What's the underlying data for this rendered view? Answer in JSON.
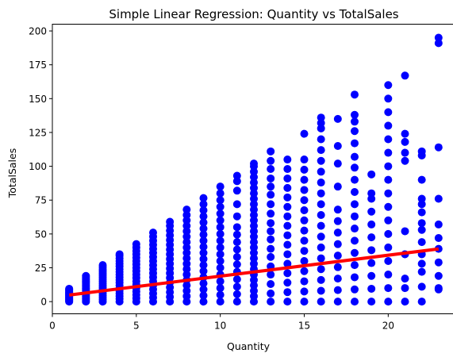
{
  "chart_data": {
    "type": "scatter",
    "title": "Simple Linear Regression: Quantity vs TotalSales",
    "xlabel": "Quantity",
    "ylabel": "TotalSales",
    "xlim": [
      0,
      24
    ],
    "ylim": [
      -9,
      205
    ],
    "grid": false,
    "x_ticks": [
      0,
      5,
      10,
      15,
      20
    ],
    "y_ticks": [
      0,
      25,
      50,
      75,
      100,
      125,
      150,
      175,
      200
    ],
    "colors": {
      "points": "#0000ff",
      "regression": "#ff0000"
    },
    "point_groups": [
      {
        "x": 1,
        "values": [
          0,
          0.5,
          1,
          1.5,
          2,
          2.5,
          3,
          3.5,
          4,
          4.5,
          5,
          5.5,
          6,
          6.5,
          7,
          7.5,
          8,
          8.5,
          9,
          9.5
        ]
      },
      {
        "x": 2,
        "values": [
          0,
          1,
          2,
          3,
          4,
          5,
          6,
          7,
          8,
          9,
          10,
          11,
          12,
          13,
          14,
          15,
          16,
          17,
          18,
          19
        ]
      },
      {
        "x": 3,
        "values": [
          0,
          1.5,
          3,
          4.5,
          6,
          7.5,
          9,
          10.5,
          12,
          13.5,
          15,
          16.5,
          18,
          19.5,
          21,
          22.5,
          24,
          25.5,
          27
        ]
      },
      {
        "x": 4,
        "values": [
          0,
          2,
          4,
          6,
          8,
          10,
          12,
          14,
          16,
          18,
          20,
          22,
          24,
          26,
          28,
          30,
          32,
          34,
          35
        ]
      },
      {
        "x": 5,
        "values": [
          0,
          2.5,
          5,
          7.5,
          10,
          12.5,
          15,
          17.5,
          20,
          22.5,
          25,
          27.5,
          30,
          32.5,
          35,
          37.5,
          40,
          42.5
        ]
      },
      {
        "x": 6,
        "values": [
          0,
          3,
          6,
          9,
          12,
          15,
          18,
          21,
          24,
          27,
          30,
          33,
          36,
          39,
          42,
          45,
          48,
          51
        ]
      },
      {
        "x": 7,
        "values": [
          0,
          3.5,
          7,
          10.5,
          14,
          17.5,
          21,
          24.5,
          28,
          31.5,
          35,
          38.5,
          42,
          45.5,
          49,
          52.5,
          56,
          59
        ]
      },
      {
        "x": 8,
        "values": [
          0,
          4,
          8,
          12,
          16,
          20,
          24,
          28,
          32,
          36,
          40,
          44,
          48,
          52,
          56,
          60,
          64,
          68
        ]
      },
      {
        "x": 9,
        "values": [
          0,
          4.5,
          9,
          13.5,
          18,
          22.5,
          27,
          31.5,
          36,
          40.5,
          45,
          49.5,
          54,
          58.5,
          63,
          67.5,
          72,
          76.5
        ]
      },
      {
        "x": 10,
        "values": [
          0,
          5,
          10,
          15,
          20,
          25,
          30,
          35,
          40,
          45,
          50,
          55,
          60,
          65,
          70,
          75,
          80,
          85
        ]
      },
      {
        "x": 11,
        "values": [
          0,
          5.5,
          11,
          16.5,
          22,
          27.5,
          33,
          38.5,
          44,
          49.5,
          55,
          63,
          72,
          82,
          89,
          93
        ]
      },
      {
        "x": 12,
        "values": [
          0,
          4,
          8,
          12,
          16,
          20,
          24,
          28,
          32,
          36,
          40,
          44,
          48,
          52,
          56,
          60,
          64,
          68,
          72,
          76,
          80,
          84,
          88,
          92,
          96,
          100,
          102
        ]
      },
      {
        "x": 13,
        "values": [
          0,
          6,
          13,
          20,
          26,
          33,
          39,
          46,
          52,
          58,
          65,
          72,
          79,
          85,
          91,
          98,
          104,
          111
        ]
      },
      {
        "x": 14,
        "values": [
          0,
          7,
          14,
          21,
          28,
          35,
          42,
          49,
          56,
          63,
          70,
          77,
          84,
          91,
          98,
          105
        ]
      },
      {
        "x": 15,
        "values": [
          0,
          7.5,
          15,
          22.5,
          30,
          37.5,
          45,
          52.5,
          60,
          67.5,
          75,
          82.5,
          90,
          97.5,
          105,
          124
        ]
      },
      {
        "x": 16,
        "values": [
          0,
          8,
          16,
          24,
          32,
          40,
          48,
          56,
          64,
          72,
          80,
          88,
          96,
          104,
          112,
          120,
          128,
          132,
          136
        ]
      },
      {
        "x": 17,
        "values": [
          0,
          8.5,
          17,
          25.5,
          34,
          42.5,
          51,
          59.5,
          68,
          85,
          102,
          115,
          135
        ]
      },
      {
        "x": 18,
        "values": [
          0,
          9,
          18,
          27,
          36,
          45,
          54,
          63,
          72,
          81,
          90,
          99,
          107,
          117,
          126,
          133,
          138,
          153
        ]
      },
      {
        "x": 19,
        "values": [
          0,
          9.5,
          19,
          28.5,
          38,
          47.5,
          57,
          66.5,
          76,
          80,
          94
        ]
      },
      {
        "x": 20,
        "values": [
          0,
          10,
          20,
          30,
          40,
          50,
          60,
          70,
          80,
          90,
          100,
          110,
          120,
          130,
          140,
          150,
          160
        ]
      },
      {
        "x": 21,
        "values": [
          0,
          10,
          17,
          35,
          52,
          104,
          110,
          118,
          124,
          167
        ]
      },
      {
        "x": 22,
        "values": [
          0,
          11,
          22,
          28,
          35,
          44,
          53,
          58,
          66,
          72,
          76,
          90,
          108,
          111
        ]
      },
      {
        "x": 23,
        "values": [
          9,
          10,
          19,
          29,
          39,
          47,
          57,
          76,
          114,
          191,
          195
        ]
      }
    ],
    "regression": {
      "slope": 1.55,
      "intercept": 3.3,
      "x_range": [
        1,
        23
      ]
    }
  }
}
